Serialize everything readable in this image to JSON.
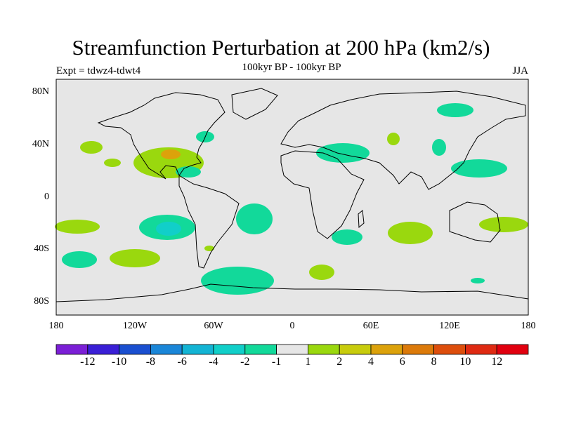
{
  "title": "Streamfunction Perturbation at 200 hPa (km2/s)",
  "subtitle": "100kyr BP - 100kyr BP",
  "left_label": "Expt = tdwz4-tdwt4",
  "right_label": "JJA",
  "lat_labels": [
    "80N",
    "40N",
    "0",
    "40S",
    "80S"
  ],
  "lon_labels": [
    "180",
    "120W",
    "60W",
    "0",
    "60E",
    "120E",
    "180"
  ],
  "colorbar": {
    "labels": [
      "-12",
      "-10",
      "-8",
      "-6",
      "-4",
      "-2",
      "-1",
      "1",
      "2",
      "4",
      "6",
      "8",
      "10",
      "12"
    ],
    "colors": [
      "#7b1fd6",
      "#3a1fd6",
      "#1a4fd0",
      "#1a86d8",
      "#13b4d4",
      "#11cfc9",
      "#12d99a",
      "#e6e6e6",
      "#9ad80e",
      "#c8cc0c",
      "#dca20b",
      "#dc7a0a",
      "#dd4e0c",
      "#df2a12",
      "#e1000f"
    ]
  },
  "map": {
    "ocean_color": "#e6e6e6",
    "positive_color": "#9ad80e",
    "positive_strong_color": "#c8cc0c",
    "positive_max_color": "#dca20b",
    "negative_color": "#12d99a",
    "negative_strong_color": "#11cfc9"
  }
}
